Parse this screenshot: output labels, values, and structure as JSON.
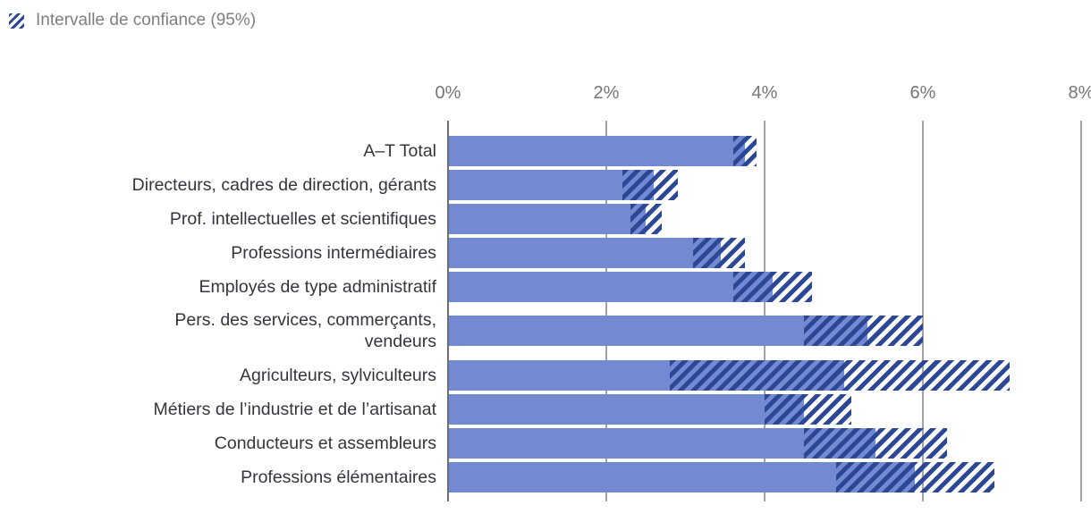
{
  "legend": {
    "icon": "confidence-interval-hatch-swatch",
    "label": "Intervalle de confiance (95%)"
  },
  "colors": {
    "bar": "#7389d2",
    "ci_hatch": "#2c4795",
    "grid": "#a2a2a2",
    "axis": "#6f6f6f",
    "tick_text": "#767676",
    "label_text": "#35353f",
    "legend_text": "#7f7f7f"
  },
  "chart_data": {
    "type": "bar",
    "orientation": "horizontal",
    "title": "",
    "xlabel": "",
    "ylabel": "",
    "unit": "%",
    "xlim": [
      0,
      8
    ],
    "x_ticks": [
      "0%",
      "2%",
      "4%",
      "6%",
      "8%"
    ],
    "grid": true,
    "legend_position": "top-left",
    "legend_label": "Intervalle de confiance (95%)",
    "categories": [
      "A–T Total",
      "Directeurs, cadres de direction, gérants",
      "Prof. intellectuelles et scientifiques",
      "Professions intermédiaires",
      "Employés de type administratif",
      "Pers. des services, commerçants,\nvendeurs",
      "Agriculteurs, sylviculteurs",
      "Métiers de l’industrie et de l’artisanat",
      "Conducteurs et assembleurs",
      "Professions élémentaires"
    ],
    "series": [
      {
        "name": "estimate",
        "values": [
          3.75,
          2.6,
          2.5,
          3.45,
          4.1,
          5.3,
          5.0,
          4.5,
          5.4,
          5.9
        ]
      },
      {
        "name": "ci_lower_95",
        "values": [
          3.6,
          2.2,
          2.3,
          3.1,
          3.6,
          4.5,
          2.8,
          4.0,
          4.5,
          4.9
        ]
      },
      {
        "name": "ci_upper_95",
        "values": [
          3.9,
          2.9,
          2.7,
          3.75,
          4.6,
          6.0,
          7.1,
          5.1,
          6.3,
          6.9
        ]
      }
    ]
  }
}
